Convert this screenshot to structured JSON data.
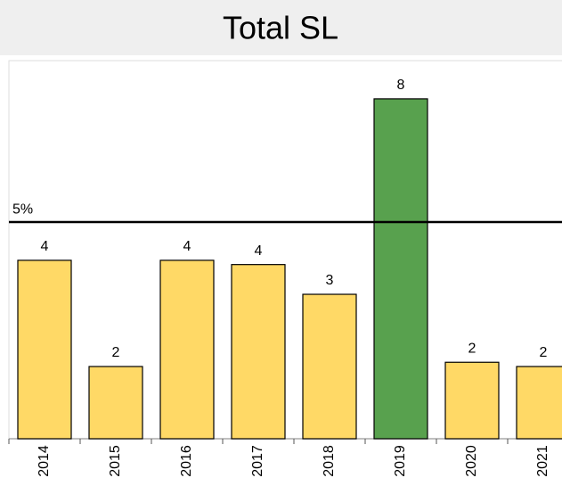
{
  "chart_data": {
    "type": "bar",
    "title": "Total SL",
    "categories": [
      "2014",
      "2015",
      "2016",
      "2017",
      "2018",
      "2019",
      "2020",
      "2021"
    ],
    "values": [
      4.2,
      1.7,
      4.2,
      4.1,
      3.4,
      8.0,
      1.8,
      1.7
    ],
    "value_labels": [
      "4",
      "2",
      "4",
      "4",
      "3",
      "8",
      "2",
      "2"
    ],
    "colors": [
      "#ffd966",
      "#ffd966",
      "#ffd966",
      "#ffd966",
      "#ffd966",
      "#58a14e",
      "#ffd966",
      "#ffd966"
    ],
    "ylim": [
      0,
      8.9
    ],
    "threshold": {
      "value": 5.1,
      "label": "5%"
    }
  }
}
